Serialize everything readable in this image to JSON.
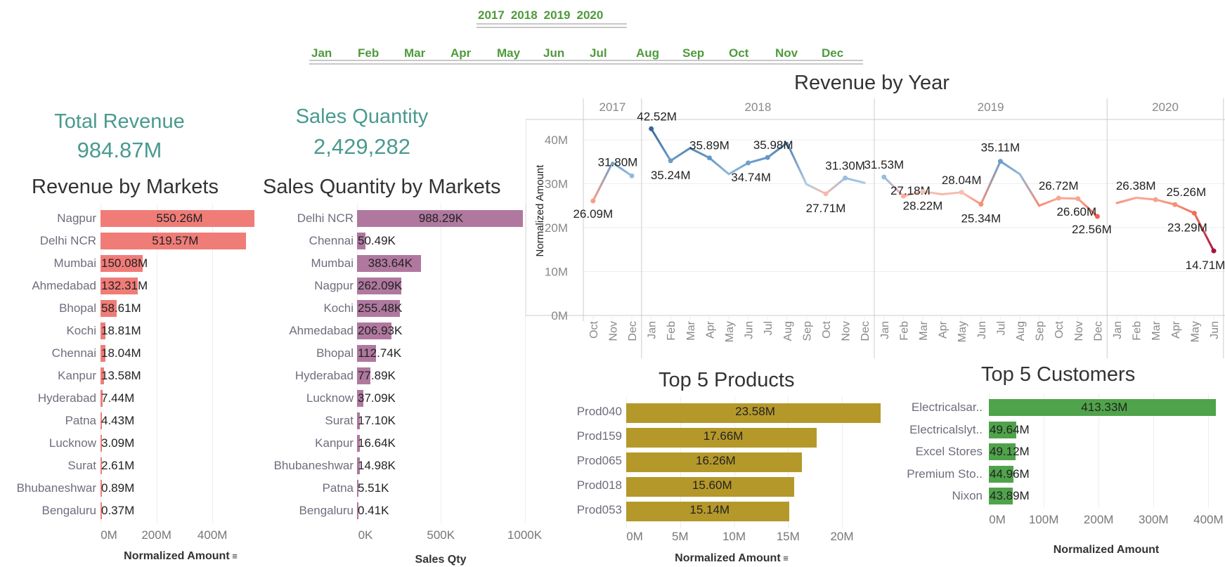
{
  "filters": {
    "years": [
      "2017",
      "2018",
      "2019",
      "2020"
    ],
    "months": [
      "Jan",
      "Feb",
      "Mar",
      "Apr",
      "May",
      "Jun",
      "Jul",
      "Aug",
      "Sep",
      "Oct",
      "Nov",
      "Dec"
    ],
    "color": "#4e9a3c"
  },
  "kpis": {
    "total_revenue": {
      "title": "Total Revenue",
      "value": "984.87M"
    },
    "sales_quantity": {
      "title": "Sales Quantity",
      "value": "2,429,282"
    },
    "color": "#4a9a8f"
  },
  "chart_data": [
    {
      "type": "line",
      "title": "Revenue by Year",
      "ylabel": "Normalized Amount",
      "ylim": [
        0,
        45
      ],
      "yticks": [
        0,
        10,
        20,
        30,
        40
      ],
      "ytick_labels": [
        "0M",
        "10M",
        "20M",
        "30M",
        "40M"
      ],
      "grid": true,
      "color_scale": "diverging red-blue by value",
      "years": [
        {
          "year": "2017",
          "months": [
            "Oct",
            "Nov",
            "Dec"
          ],
          "values": [
            26.09,
            34.8,
            31.8
          ],
          "labels": [
            "26.09M",
            null,
            "31.80M"
          ]
        },
        {
          "year": "2018",
          "months": [
            "Jan",
            "Feb",
            "Mar",
            "Apr",
            "May",
            "Jun",
            "Jul",
            "Aug",
            "Sep",
            "Oct",
            "Nov",
            "Dec"
          ],
          "values": [
            42.52,
            35.24,
            38.1,
            35.89,
            32.2,
            34.74,
            35.98,
            39.3,
            29.9,
            27.71,
            31.3,
            30.2
          ],
          "labels": [
            "42.52M",
            "35.24M",
            null,
            "35.89M",
            null,
            "34.74M",
            "35.98M",
            null,
            null,
            "27.71M",
            "31.30M",
            null
          ]
        },
        {
          "year": "2019",
          "months": [
            "Jan",
            "Feb",
            "Mar",
            "Apr",
            "May",
            "Jun",
            "Jul",
            "Aug",
            "Sep",
            "Oct",
            "Nov",
            "Dec"
          ],
          "values": [
            31.53,
            27.18,
            28.22,
            27.6,
            28.04,
            25.34,
            35.11,
            32.2,
            25.0,
            26.72,
            26.6,
            22.56
          ],
          "labels": [
            "31.53M",
            "27.18M",
            "28.22M",
            null,
            "28.04M",
            "25.34M",
            "35.11M",
            null,
            null,
            "26.72M",
            "26.60M",
            "22.56M"
          ]
        },
        {
          "year": "2020",
          "months": [
            "Jan",
            "Feb",
            "Mar",
            "Apr",
            "May",
            "Jun"
          ],
          "values": [
            25.6,
            26.8,
            26.38,
            25.26,
            23.29,
            14.71
          ],
          "labels": [
            null,
            null,
            "26.38M",
            "25.26M",
            "23.29M",
            "14.71M"
          ]
        }
      ]
    },
    {
      "type": "bar",
      "title": "Revenue by Markets",
      "xlabel": "Normalized Amount",
      "categories": [
        "Nagpur",
        "Delhi NCR",
        "Mumbai",
        "Ahmedabad",
        "Bhopal",
        "Kochi",
        "Chennai",
        "Kanpur",
        "Hyderabad",
        "Patna",
        "Lucknow",
        "Surat",
        "Bhubaneshwar",
        "Bengaluru"
      ],
      "values": [
        550.26,
        519.57,
        150.08,
        132.31,
        58.61,
        18.81,
        18.04,
        13.58,
        7.44,
        4.43,
        3.09,
        2.61,
        0.89,
        0.37
      ],
      "labels": [
        "550.26M",
        "519.57M",
        "150.08M",
        "132.31M",
        "58.61M",
        "18.81M",
        "18.04M",
        "13.58M",
        "7.44M",
        "4.43M",
        "3.09M",
        "2.61M",
        "0.89M",
        "0.37M"
      ],
      "xticks": [
        0,
        200,
        400
      ],
      "xtick_labels": [
        "0M",
        "200M",
        "400M"
      ],
      "color": "#f07c78",
      "sort_icon": "sort-descending-icon"
    },
    {
      "type": "bar",
      "title": "Sales Quantity by Markets",
      "xlabel": "Sales Qty",
      "categories": [
        "Delhi NCR",
        "Chennai",
        "Mumbai",
        "Nagpur",
        "Kochi",
        "Ahmedabad",
        "Bhopal",
        "Hyderabad",
        "Lucknow",
        "Surat",
        "Kanpur",
        "Bhubaneshwar",
        "Patna",
        "Bengaluru"
      ],
      "values": [
        988.29,
        50.49,
        383.64,
        262.09,
        255.48,
        206.93,
        112.74,
        77.89,
        37.09,
        17.1,
        16.64,
        14.98,
        5.51,
        0.41
      ],
      "labels": [
        "988.29K",
        "50.49K",
        "383.64K",
        "262.09K",
        "255.48K",
        "206.93K",
        "112.74K",
        "77.89K",
        "37.09K",
        "17.10K",
        "16.64K",
        "14.98K",
        "5.51K",
        "0.41K"
      ],
      "xticks": [
        0,
        500,
        1000
      ],
      "xtick_labels": [
        "0K",
        "500K",
        "1000K"
      ],
      "color": "#b0789f"
    },
    {
      "type": "bar",
      "title": "Top 5 Products",
      "xlabel": "Normalized Amount",
      "categories": [
        "Prod040",
        "Prod159",
        "Prod065",
        "Prod018",
        "Prod053"
      ],
      "values": [
        23.58,
        17.66,
        16.26,
        15.6,
        15.14
      ],
      "labels": [
        "23.58M",
        "17.66M",
        "16.26M",
        "15.60M",
        "15.14M"
      ],
      "xticks": [
        0,
        5,
        10,
        15,
        20
      ],
      "xtick_labels": [
        "0M",
        "5M",
        "10M",
        "15M",
        "20M"
      ],
      "color": "#b5982a",
      "sort_icon": "sort-descending-icon"
    },
    {
      "type": "bar",
      "title": "Top 5 Customers",
      "xlabel": "Normalized Amount",
      "categories": [
        "Electricalsar..",
        "Electricalslyt..",
        "Excel Stores",
        "Premium Sto..",
        "Nixon"
      ],
      "values": [
        413.33,
        49.64,
        49.12,
        44.96,
        43.89
      ],
      "labels": [
        "413.33M",
        "49.64M",
        "49.12M",
        "44.96M",
        "43.89M"
      ],
      "xticks": [
        0,
        100,
        200,
        300,
        400
      ],
      "xtick_labels": [
        "0M",
        "100M",
        "200M",
        "300M",
        "400M"
      ],
      "color": "#4fa34a"
    }
  ]
}
